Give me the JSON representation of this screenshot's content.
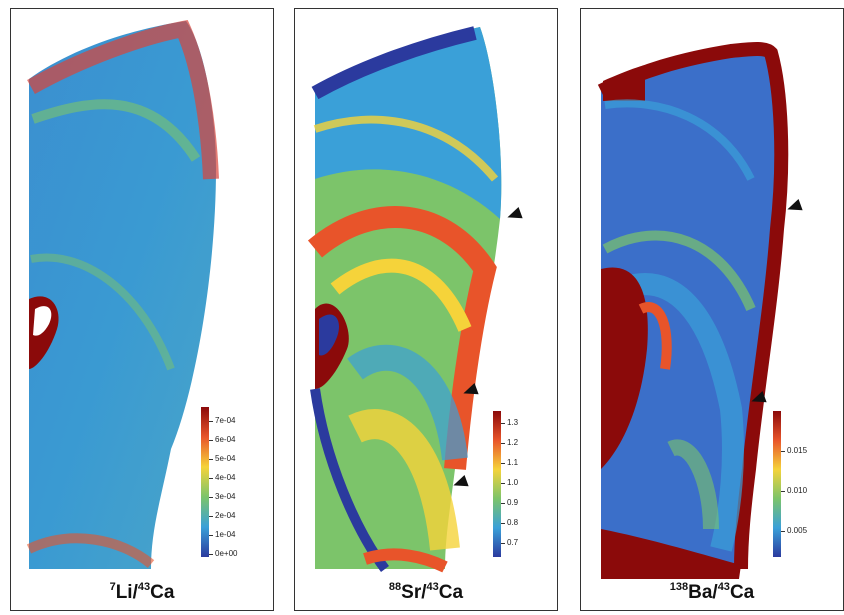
{
  "panels": [
    {
      "id": "li",
      "iso1": "7",
      "el1": "Li",
      "sep": "/",
      "iso2": "43",
      "el2": "Ca",
      "colorbar": {
        "ticks": [
          "7e-04",
          "6e-04",
          "5e-04",
          "4e-04",
          "3e-04",
          "2e-04",
          "1e-04",
          "0e+00"
        ]
      }
    },
    {
      "id": "sr",
      "iso1": "88",
      "el1": "Sr",
      "sep": "/",
      "iso2": "43",
      "el2": "Ca",
      "colorbar": {
        "ticks": [
          "1.3",
          "1.2",
          "1.1",
          "1.0",
          "0.9",
          "0.8",
          "0.7"
        ]
      }
    },
    {
      "id": "ba",
      "iso1": "138",
      "el1": "Ba",
      "sep": "/",
      "iso2": "43",
      "el2": "Ca",
      "colorbar": {
        "ticks": [
          "0.015",
          "0.010",
          "0.005"
        ]
      }
    }
  ],
  "colors": {
    "low": "#2b3a9e",
    "mid_low": "#3aa0d8",
    "mid": "#7cc46a",
    "mid_high": "#f5d33a",
    "high": "#e8542a",
    "max": "#8b0a0a",
    "arrow": "#111111"
  }
}
